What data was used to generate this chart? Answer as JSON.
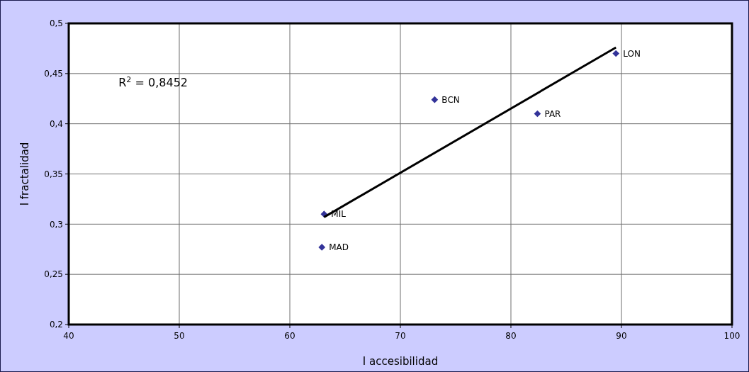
{
  "chart_data": {
    "type": "scatter",
    "xlabel": "I accesibilidad",
    "ylabel": "I fractalidad",
    "xlim": [
      40,
      100
    ],
    "xticks": [
      40,
      50,
      60,
      70,
      80,
      90,
      100
    ],
    "ylim": [
      0.2,
      0.5
    ],
    "yticks": [
      {
        "value": 0.2,
        "label": "0,2"
      },
      {
        "value": 0.25,
        "label": "0,25"
      },
      {
        "value": 0.3,
        "label": "0,3"
      },
      {
        "value": 0.35,
        "label": "0,35"
      },
      {
        "value": 0.4,
        "label": "0,4"
      },
      {
        "value": 0.45,
        "label": "0,45"
      },
      {
        "value": 0.5,
        "label": "0,5"
      }
    ],
    "grid": true,
    "marker": "diamond",
    "series": [
      {
        "color": "#333399",
        "x": [
          89.5,
          73.1,
          82.4,
          63.1,
          62.9
        ],
        "values": [
          0.47,
          0.424,
          0.41,
          0.31,
          0.277
        ]
      },
      {
        "type": "line",
        "color": "#000000",
        "x": [
          63.1,
          89.5
        ],
        "values": [
          0.307,
          0.476
        ],
        "marker": "none"
      }
    ],
    "annotations": [
      {
        "text": "LON",
        "x": 89.5,
        "y": 0.47
      },
      {
        "text": "BCN",
        "x": 73.1,
        "y": 0.424
      },
      {
        "text": "PAR",
        "x": 82.4,
        "y": 0.41
      },
      {
        "text": "MIL",
        "x": 63.1,
        "y": 0.31
      },
      {
        "text": "MAD",
        "x": 62.9,
        "y": 0.277
      },
      "R$^{2}$ = 0,8452"
    ]
  }
}
